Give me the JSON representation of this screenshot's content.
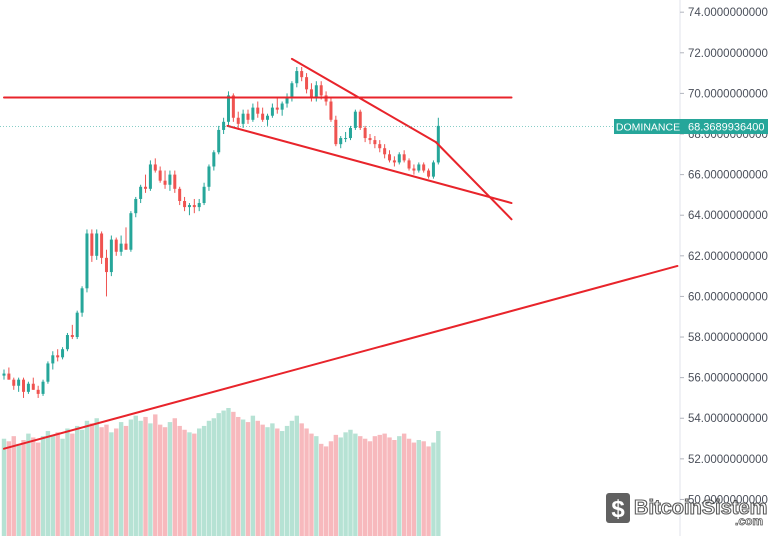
{
  "chart_data": {
    "type": "candlestick",
    "series_label": "DOMINANCE",
    "last_value": "68.3689936400",
    "y_ticks": [
      "74.0000000000",
      "72.0000000000",
      "70.0000000000",
      "68.0000000000",
      "66.0000000000",
      "64.0000000000",
      "62.0000000000",
      "60.0000000000",
      "58.0000000000",
      "56.0000000000",
      "54.0000000000",
      "52.0000000000",
      "50.0000000000"
    ],
    "ylim": [
      48.2,
      74.6
    ],
    "grid": false,
    "colors": {
      "up": "#26a69a",
      "down": "#ef5350",
      "trendline": "#e8242b",
      "label_bg": "#26a69a",
      "volume_up": "#b6e2d4",
      "volume_down": "#f7b9bd"
    },
    "candles": [
      [
        56.1,
        56.4,
        55.9,
        56.2
      ],
      [
        56.2,
        56.5,
        55.9,
        55.9
      ],
      [
        55.9,
        56.0,
        55.4,
        55.6
      ],
      [
        55.6,
        56.0,
        55.3,
        55.9
      ],
      [
        55.9,
        56.0,
        55.0,
        55.3
      ],
      [
        55.3,
        55.8,
        55.2,
        55.7
      ],
      [
        55.7,
        56.0,
        55.4,
        55.4
      ],
      [
        55.4,
        55.6,
        55.0,
        55.2
      ],
      [
        55.2,
        55.9,
        55.1,
        55.8
      ],
      [
        55.8,
        56.8,
        55.7,
        56.7
      ],
      [
        56.7,
        57.3,
        56.4,
        57.1
      ],
      [
        57.1,
        57.4,
        56.8,
        57.0
      ],
      [
        57.0,
        57.5,
        56.9,
        57.4
      ],
      [
        57.4,
        58.2,
        57.3,
        58.1
      ],
      [
        58.1,
        58.6,
        57.9,
        58.0
      ],
      [
        58.0,
        59.3,
        57.9,
        59.2
      ],
      [
        59.2,
        60.5,
        59.0,
        60.4
      ],
      [
        60.4,
        63.3,
        60.2,
        63.1
      ],
      [
        63.1,
        63.3,
        61.7,
        62.0
      ],
      [
        62.0,
        63.3,
        61.8,
        63.1
      ],
      [
        63.1,
        63.2,
        61.6,
        61.9
      ],
      [
        61.9,
        62.3,
        60.0,
        61.2
      ],
      [
        61.2,
        63.0,
        61.0,
        62.8
      ],
      [
        62.8,
        62.9,
        62.0,
        62.2
      ],
      [
        62.2,
        63.0,
        62.0,
        62.6
      ],
      [
        62.6,
        63.4,
        62.3,
        62.3
      ],
      [
        62.3,
        64.2,
        62.2,
        64.1
      ],
      [
        64.1,
        64.9,
        63.9,
        64.8
      ],
      [
        64.8,
        65.5,
        64.6,
        65.4
      ],
      [
        65.4,
        66.0,
        65.1,
        65.3
      ],
      [
        65.3,
        66.7,
        65.2,
        66.5
      ],
      [
        66.5,
        66.8,
        66.1,
        66.2
      ],
      [
        66.2,
        66.4,
        65.6,
        65.7
      ],
      [
        65.7,
        66.2,
        65.3,
        65.5
      ],
      [
        65.5,
        66.2,
        65.2,
        66.0
      ],
      [
        66.0,
        66.2,
        65.1,
        65.3
      ],
      [
        65.3,
        65.4,
        64.5,
        64.7
      ],
      [
        64.7,
        64.9,
        64.2,
        64.4
      ],
      [
        64.4,
        64.6,
        64.0,
        64.5
      ],
      [
        64.5,
        64.8,
        64.1,
        64.4
      ],
      [
        64.4,
        64.8,
        64.2,
        64.6
      ],
      [
        64.6,
        65.6,
        64.5,
        65.4
      ],
      [
        65.4,
        66.5,
        65.2,
        66.4
      ],
      [
        66.4,
        67.2,
        66.2,
        67.1
      ],
      [
        67.1,
        68.4,
        67.0,
        68.2
      ],
      [
        68.2,
        68.8,
        68.0,
        68.6
      ],
      [
        68.6,
        70.1,
        68.4,
        69.9
      ],
      [
        69.9,
        70.0,
        68.6,
        68.8
      ],
      [
        68.8,
        69.1,
        68.2,
        68.5
      ],
      [
        68.5,
        69.2,
        68.3,
        69.0
      ],
      [
        69.0,
        69.2,
        68.5,
        68.7
      ],
      [
        68.7,
        69.5,
        68.6,
        69.3
      ],
      [
        69.3,
        69.6,
        68.8,
        69.0
      ],
      [
        69.0,
        69.3,
        68.6,
        68.7
      ],
      [
        68.7,
        69.0,
        68.4,
        68.9
      ],
      [
        68.9,
        69.5,
        68.8,
        69.3
      ],
      [
        69.3,
        69.8,
        69.0,
        69.2
      ],
      [
        69.2,
        69.6,
        68.9,
        69.5
      ],
      [
        69.5,
        70.0,
        69.3,
        69.8
      ],
      [
        69.8,
        70.6,
        69.6,
        70.5
      ],
      [
        70.5,
        71.3,
        70.3,
        71.1
      ],
      [
        71.1,
        71.3,
        70.6,
        70.8
      ],
      [
        70.8,
        71.0,
        70.0,
        70.2
      ],
      [
        70.2,
        70.5,
        69.6,
        69.8
      ],
      [
        69.8,
        70.6,
        69.6,
        70.4
      ],
      [
        70.4,
        70.6,
        69.7,
        69.9
      ],
      [
        69.9,
        70.1,
        69.4,
        69.6
      ],
      [
        69.6,
        69.8,
        68.6,
        68.7
      ],
      [
        68.7,
        68.9,
        67.4,
        67.5
      ],
      [
        67.5,
        67.9,
        67.3,
        67.8
      ],
      [
        67.8,
        68.1,
        67.6,
        67.8
      ],
      [
        67.8,
        68.4,
        67.7,
        68.3
      ],
      [
        68.3,
        69.2,
        68.2,
        69.1
      ],
      [
        69.1,
        69.2,
        68.2,
        68.3
      ],
      [
        68.3,
        68.4,
        67.6,
        67.8
      ],
      [
        67.8,
        68.0,
        67.5,
        67.7
      ],
      [
        67.7,
        67.9,
        67.3,
        67.5
      ],
      [
        67.5,
        67.7,
        67.1,
        67.3
      ],
      [
        67.3,
        67.5,
        66.8,
        67.0
      ],
      [
        67.0,
        67.2,
        66.6,
        66.7
      ],
      [
        66.7,
        66.9,
        66.4,
        66.6
      ],
      [
        66.6,
        67.1,
        66.5,
        67.0
      ],
      [
        67.0,
        67.2,
        66.6,
        66.7
      ],
      [
        66.7,
        66.8,
        66.2,
        66.3
      ],
      [
        66.3,
        66.5,
        66.0,
        66.2
      ],
      [
        66.2,
        66.6,
        66.1,
        66.5
      ],
      [
        66.5,
        66.6,
        66.1,
        66.2
      ],
      [
        66.2,
        66.3,
        65.8,
        65.9
      ],
      [
        65.9,
        66.7,
        65.8,
        66.6
      ],
      [
        66.6,
        68.8,
        66.5,
        68.4
      ]
    ],
    "volumes": [
      0.76,
      0.74,
      0.78,
      0.72,
      0.75,
      0.8,
      0.77,
      0.73,
      0.78,
      0.82,
      0.79,
      0.81,
      0.76,
      0.84,
      0.8,
      0.86,
      0.83,
      0.9,
      0.88,
      0.92,
      0.85,
      0.87,
      0.81,
      0.84,
      0.89,
      0.86,
      0.91,
      0.94,
      0.9,
      0.93,
      0.88,
      0.95,
      0.87,
      0.85,
      0.89,
      0.92,
      0.86,
      0.83,
      0.81,
      0.8,
      0.84,
      0.86,
      0.9,
      0.92,
      0.96,
      0.98,
      1.0,
      0.97,
      0.93,
      0.91,
      0.89,
      0.94,
      0.9,
      0.87,
      0.85,
      0.88,
      0.84,
      0.82,
      0.86,
      0.9,
      0.94,
      0.88,
      0.84,
      0.8,
      0.78,
      0.72,
      0.7,
      0.74,
      0.79,
      0.77,
      0.81,
      0.83,
      0.8,
      0.78,
      0.76,
      0.74,
      0.78,
      0.79,
      0.8,
      0.77,
      0.75,
      0.78,
      0.8,
      0.76,
      0.73,
      0.75,
      0.74,
      0.7,
      0.73,
      0.82
    ],
    "trendlines": [
      {
        "name": "resistance-horizontal",
        "x": [
          0,
          104
        ],
        "y": [
          69.8,
          69.8
        ]
      },
      {
        "name": "falling-wedge-upper",
        "x": [
          59,
          88.5
        ],
        "y": [
          71.7,
          67.6
        ]
      },
      {
        "name": "falling-wedge-upper-extension",
        "x": [
          88.5,
          104
        ],
        "y": [
          67.6,
          63.8
        ]
      },
      {
        "name": "falling-wedge-lower",
        "x": [
          45.8,
          104
        ],
        "y": [
          68.4,
          64.6
        ]
      },
      {
        "name": "long-term-support",
        "x": [
          0,
          138
        ],
        "y": [
          52.5,
          61.5
        ]
      }
    ]
  },
  "watermark": {
    "brand": "BitcoinSistemi",
    "suffix": ".com",
    "icon": "bitcoin-logo-icon"
  }
}
